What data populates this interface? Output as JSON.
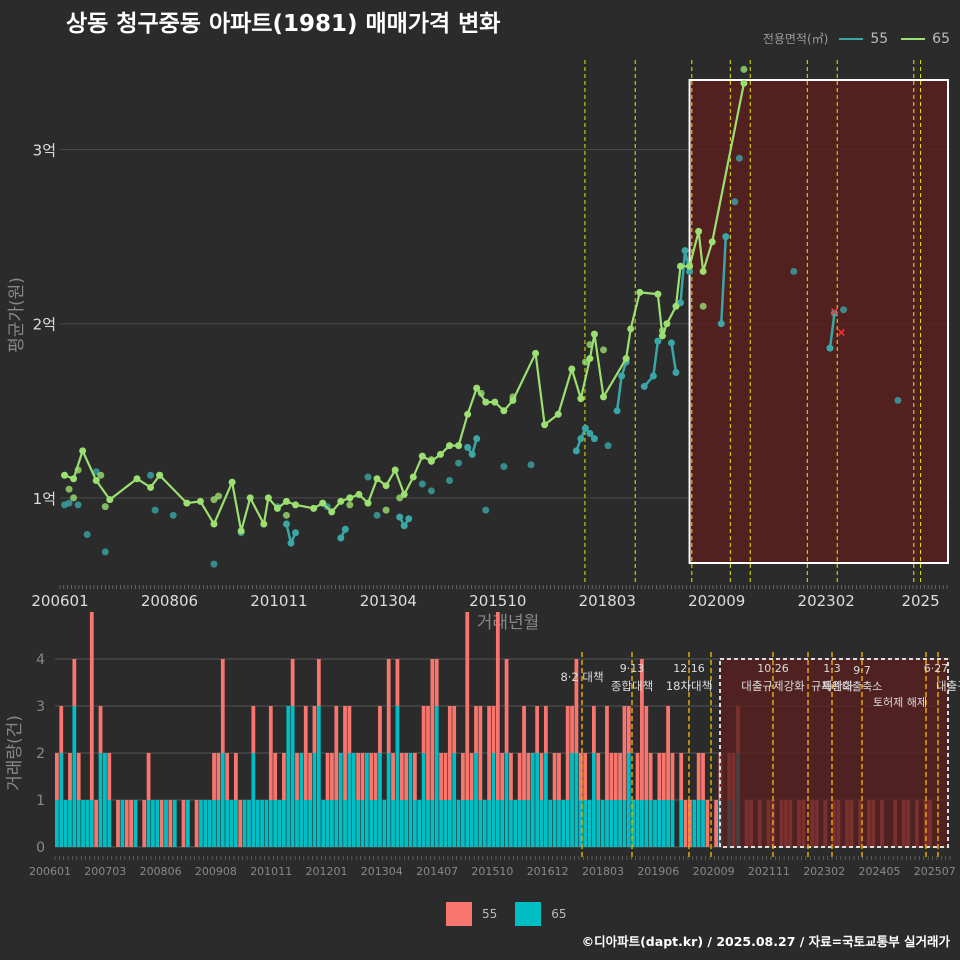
{
  "colors": {
    "background": "#2b2b2c",
    "series55": "#3aa6a6",
    "series65": "#9be070",
    "bar55": "#f8766d",
    "bar65": "#00bfc4",
    "policy_line": "#e6e600",
    "highlight_fill": "#5a1f1f"
  },
  "title": "상동 청구중동 아파트(1981) 매매가격 변화",
  "legend": {
    "title": "전용면적(㎡)",
    "items": [
      "55",
      "65"
    ]
  },
  "bottom_legend": {
    "items": [
      "55",
      "65"
    ]
  },
  "credit": "©디아파트(dapt.kr) / 2025.08.27 / 자료=국토교통부 실거래가",
  "chart_data": [
    {
      "type": "line",
      "xlabel": "거래년월",
      "ylabel": "평균가(원)",
      "x_ticks": [
        "200601",
        "200806",
        "201011",
        "201304",
        "201510",
        "201803",
        "202009",
        "202302",
        "2025"
      ],
      "y_ticks": [
        "1억",
        "2억",
        "3억"
      ],
      "y_values": [
        1,
        2,
        3
      ],
      "ylim": [
        0.5,
        3.6
      ],
      "xlim": [
        2006.0,
        2025.65
      ],
      "policy_dates": [
        2017.59,
        2018.7,
        2019.95,
        2020.8,
        2021.24,
        2022.5,
        2023.16,
        2024.85,
        2025.0
      ],
      "highlight_start": 2019.9,
      "series": [
        {
          "name": "55",
          "line_segments": [
            [
              [
                2011.0,
                0.85
              ],
              [
                2011.1,
                0.74
              ],
              [
                2011.2,
                0.8
              ]
            ],
            [
              [
                2012.2,
                0.77
              ],
              [
                2012.3,
                0.82
              ]
            ],
            [
              [
                2013.5,
                0.89
              ],
              [
                2013.6,
                0.84
              ],
              [
                2013.7,
                0.88
              ]
            ],
            [
              [
                2015.0,
                1.29
              ],
              [
                2015.1,
                1.25
              ],
              [
                2015.2,
                1.34
              ]
            ],
            [
              [
                2017.4,
                1.27
              ],
              [
                2017.5,
                1.34
              ],
              [
                2017.6,
                1.4
              ],
              [
                2017.7,
                1.37
              ],
              [
                2017.8,
                1.34
              ]
            ],
            [
              [
                2018.3,
                1.5
              ],
              [
                2018.4,
                1.7
              ],
              [
                2018.5,
                1.78
              ]
            ],
            [
              [
                2018.9,
                1.64
              ],
              [
                2019.1,
                1.7
              ],
              [
                2019.2,
                1.9
              ]
            ],
            [
              [
                2019.5,
                1.89
              ],
              [
                2019.6,
                1.72
              ]
            ],
            [
              [
                2019.7,
                2.12
              ],
              [
                2019.8,
                2.42
              ],
              [
                2019.9,
                2.3
              ]
            ],
            [
              [
                2020.6,
                2.0
              ],
              [
                2020.7,
                2.5
              ]
            ],
            [
              [
                2023.0,
                1.86
              ],
              [
                2023.1,
                2.06
              ]
            ]
          ],
          "points": [
            [
              2006.1,
              0.96
            ],
            [
              2006.2,
              0.97
            ],
            [
              2006.4,
              0.96
            ],
            [
              2006.6,
              0.79
            ],
            [
              2006.8,
              1.15
            ],
            [
              2007.0,
              0.69
            ],
            [
              2008.0,
              1.13
            ],
            [
              2008.1,
              0.93
            ],
            [
              2008.5,
              0.9
            ],
            [
              2009.4,
              0.62
            ],
            [
              2010.0,
              0.8
            ],
            [
              2010.8,
              0.95
            ],
            [
              2011.9,
              0.95
            ],
            [
              2012.4,
              1.0
            ],
            [
              2012.8,
              1.12
            ],
            [
              2013.0,
              0.9
            ],
            [
              2014.0,
              1.08
            ],
            [
              2014.2,
              1.04
            ],
            [
              2014.6,
              1.1
            ],
            [
              2014.8,
              1.2
            ],
            [
              2015.4,
              0.93
            ],
            [
              2015.8,
              1.18
            ],
            [
              2016.4,
              1.19
            ],
            [
              2018.1,
              1.3
            ],
            [
              2021.0,
              2.95
            ],
            [
              2020.9,
              2.7
            ],
            [
              2022.2,
              2.3
            ],
            [
              2023.3,
              2.08
            ],
            [
              2024.5,
              1.56
            ]
          ]
        },
        {
          "name": "65",
          "line": [
            [
              2006.1,
              1.13
            ],
            [
              2006.3,
              1.11
            ],
            [
              2006.5,
              1.27
            ],
            [
              2006.8,
              1.1
            ],
            [
              2007.1,
              0.99
            ],
            [
              2007.7,
              1.11
            ],
            [
              2008.0,
              1.06
            ],
            [
              2008.2,
              1.13
            ],
            [
              2008.8,
              0.97
            ],
            [
              2009.1,
              0.98
            ],
            [
              2009.4,
              0.85
            ],
            [
              2009.8,
              1.09
            ],
            [
              2010.0,
              0.81
            ],
            [
              2010.2,
              1.0
            ],
            [
              2010.5,
              0.85
            ],
            [
              2010.6,
              1.0
            ],
            [
              2010.8,
              0.94
            ],
            [
              2011.0,
              0.98
            ],
            [
              2011.2,
              0.96
            ],
            [
              2011.6,
              0.94
            ],
            [
              2011.8,
              0.97
            ],
            [
              2012.0,
              0.92
            ],
            [
              2012.2,
              0.98
            ],
            [
              2012.4,
              1.0
            ],
            [
              2012.6,
              1.02
            ],
            [
              2012.8,
              0.97
            ],
            [
              2013.0,
              1.11
            ],
            [
              2013.2,
              1.07
            ],
            [
              2013.4,
              1.16
            ],
            [
              2013.6,
              1.02
            ],
            [
              2013.8,
              1.12
            ],
            [
              2014.0,
              1.24
            ],
            [
              2014.2,
              1.21
            ],
            [
              2014.4,
              1.25
            ],
            [
              2014.6,
              1.3
            ],
            [
              2014.8,
              1.3
            ],
            [
              2015.0,
              1.48
            ],
            [
              2015.2,
              1.63
            ],
            [
              2015.4,
              1.55
            ],
            [
              2015.6,
              1.55
            ],
            [
              2015.8,
              1.5
            ],
            [
              2016.0,
              1.56
            ],
            [
              2016.5,
              1.83
            ],
            [
              2016.7,
              1.42
            ],
            [
              2017.0,
              1.48
            ],
            [
              2017.3,
              1.74
            ],
            [
              2017.5,
              1.57
            ],
            [
              2017.7,
              1.8
            ],
            [
              2017.8,
              1.94
            ],
            [
              2018.0,
              1.58
            ],
            [
              2018.5,
              1.8
            ],
            [
              2018.6,
              1.97
            ],
            [
              2018.8,
              2.18
            ],
            [
              2019.2,
              2.17
            ],
            [
              2019.3,
              1.93
            ],
            [
              2019.4,
              2.0
            ],
            [
              2019.6,
              2.1
            ],
            [
              2019.7,
              2.33
            ],
            [
              2019.9,
              2.33
            ],
            [
              2020.1,
              2.53
            ],
            [
              2020.2,
              2.3
            ],
            [
              2020.4,
              2.47
            ],
            [
              2021.1,
              3.38
            ]
          ],
          "points": [
            [
              2006.2,
              1.05
            ],
            [
              2006.3,
              1.0
            ],
            [
              2006.4,
              1.16
            ],
            [
              2006.9,
              1.13
            ],
            [
              2007.0,
              0.95
            ],
            [
              2008.2,
              1.13
            ],
            [
              2009.4,
              0.99
            ],
            [
              2009.5,
              1.01
            ],
            [
              2011.0,
              0.9
            ],
            [
              2012.4,
              0.96
            ],
            [
              2013.2,
              0.93
            ],
            [
              2013.5,
              1.0
            ],
            [
              2014.2,
              1.22
            ],
            [
              2015.3,
              1.6
            ],
            [
              2016.0,
              1.58
            ],
            [
              2017.6,
              1.78
            ],
            [
              2017.7,
              1.88
            ],
            [
              2018.0,
              1.85
            ],
            [
              2019.3,
              1.96
            ],
            [
              2021.1,
              3.46
            ],
            [
              2020.2,
              2.1
            ]
          ]
        }
      ],
      "markers_x": [
        [
          2023.1,
          2.07
        ],
        [
          2023.25,
          1.95
        ]
      ]
    },
    {
      "type": "bar",
      "xlabel": "",
      "ylabel": "거래량(건)",
      "x_ticks": [
        "200601",
        "200703",
        "200806",
        "200908",
        "201011",
        "201201",
        "201304",
        "201407",
        "201510",
        "201612",
        "201803",
        "201906",
        "202009",
        "202111",
        "202302",
        "202405",
        "202507"
      ],
      "y_ticks": [
        "0",
        "1",
        "2",
        "3",
        "4"
      ],
      "ylim": [
        0,
        4
      ],
      "annotations": [
        {
          "date": "8·2",
          "label": "대책"
        },
        {
          "date": "9·13",
          "label": "종합대책"
        },
        {
          "date": "12·16",
          "label": "18차대책"
        },
        {
          "date": "10·26",
          "label": "대출규제강화"
        },
        {
          "date": "1·3",
          "label": "규제완화"
        },
        {
          "date": "9·7",
          "label": "특례대출축소"
        },
        {
          "date": "",
          "label": "토허제 해제"
        },
        {
          "date": "6·27",
          "label": "대출규"
        }
      ],
      "series": [
        {
          "name": "55",
          "values": [
            1,
            1,
            0,
            1,
            1,
            1,
            0,
            0,
            4,
            1,
            1,
            0,
            1,
            0,
            1,
            0,
            1,
            1,
            0,
            0,
            1,
            1,
            0,
            0,
            1,
            0,
            1,
            0,
            0,
            1,
            0,
            0,
            1,
            0,
            0,
            0,
            1,
            1,
            2,
            1,
            0,
            1,
            1,
            0,
            0,
            1,
            0,
            0,
            0,
            2,
            1,
            0,
            1,
            0,
            1,
            1,
            0,
            2,
            1,
            1,
            1,
            0,
            1,
            1,
            2,
            0,
            2,
            1,
            0,
            1,
            1,
            0,
            1,
            1,
            1,
            0,
            2,
            1,
            1,
            1,
            1,
            0,
            1,
            0,
            1,
            2,
            3,
            1,
            1,
            1,
            2,
            1,
            0,
            1,
            4,
            1,
            1,
            2,
            0,
            2,
            1,
            4,
            1,
            2,
            1,
            0,
            1,
            2,
            1,
            0,
            1,
            1,
            1,
            0,
            1,
            1,
            0,
            2,
            1,
            2,
            1,
            1,
            0,
            1,
            1,
            0,
            2,
            1,
            1,
            1,
            2,
            1,
            0,
            1,
            3,
            2,
            1,
            0,
            1,
            1,
            2,
            1,
            0,
            1,
            1,
            1,
            0,
            1,
            1,
            1,
            0,
            1,
            1,
            0,
            1,
            2,
            1,
            0,
            1,
            1,
            0,
            1,
            0,
            1,
            1,
            0,
            1,
            1,
            1,
            0,
            1,
            1,
            0,
            1,
            1,
            0,
            1,
            0,
            1,
            1,
            0,
            1,
            1,
            0,
            1,
            0,
            1,
            1,
            0,
            1,
            0,
            0,
            1,
            0,
            1,
            1,
            0,
            1,
            0,
            1,
            1,
            0,
            1,
            0,
            1
          ]
        },
        {
          "name": "65",
          "values": [
            1,
            2,
            1,
            1,
            3,
            1,
            1,
            1,
            1,
            0,
            2,
            2,
            1,
            0,
            0,
            1,
            0,
            0,
            1,
            0,
            0,
            1,
            1,
            1,
            0,
            1,
            0,
            1,
            0,
            0,
            1,
            0,
            0,
            1,
            1,
            1,
            1,
            1,
            2,
            1,
            1,
            1,
            0,
            1,
            1,
            2,
            1,
            1,
            1,
            1,
            1,
            1,
            1,
            3,
            3,
            1,
            2,
            1,
            1,
            2,
            3,
            1,
            1,
            1,
            1,
            2,
            1,
            2,
            2,
            1,
            1,
            2,
            1,
            1,
            2,
            1,
            2,
            1,
            3,
            1,
            1,
            2,
            1,
            1,
            2,
            1,
            1,
            3,
            1,
            1,
            1,
            2,
            1,
            1,
            1,
            1,
            2,
            1,
            1,
            1,
            2,
            1,
            1,
            2,
            1,
            1,
            1,
            1,
            1,
            2,
            2,
            1,
            2,
            1,
            1,
            1,
            1,
            1,
            2,
            2,
            1,
            1,
            1,
            2,
            1,
            1,
            1,
            1,
            1,
            1,
            1,
            2,
            1,
            1,
            1,
            1,
            1,
            1,
            1,
            1,
            1,
            1,
            0,
            1,
            0,
            0,
            1,
            1,
            1,
            0,
            0,
            0,
            1,
            0,
            1,
            0,
            2,
            0,
            0,
            0,
            0,
            0,
            0,
            0,
            0,
            0,
            0,
            0,
            0,
            0,
            0,
            0,
            0,
            0,
            0,
            0,
            0,
            0,
            0,
            0,
            0,
            0,
            0,
            0,
            0,
            0,
            0,
            0,
            0,
            0,
            0,
            0,
            0,
            0,
            0,
            0,
            0,
            0,
            0,
            0,
            0
          ]
        }
      ]
    }
  ]
}
